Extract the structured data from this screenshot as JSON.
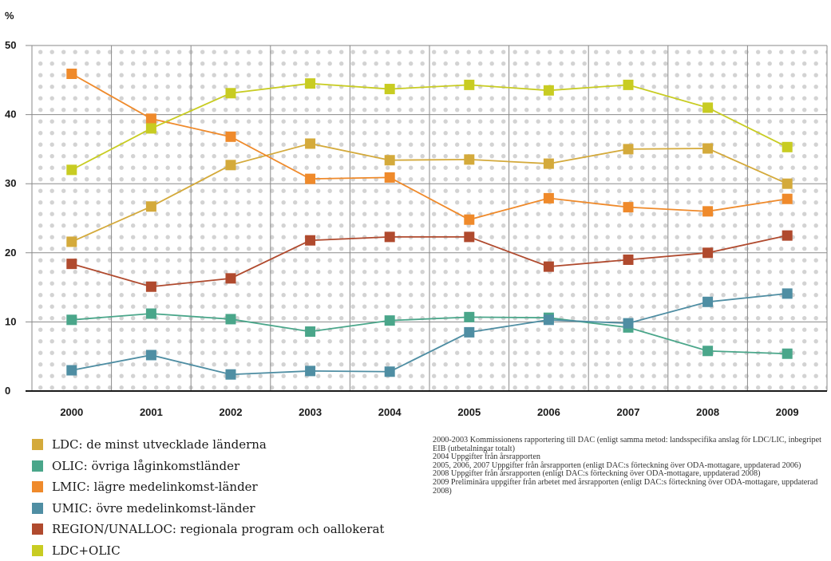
{
  "chart_data": {
    "type": "line",
    "ylabel": "%",
    "ylim": [
      0,
      50
    ],
    "yticks": [
      0,
      10,
      20,
      30,
      40,
      50
    ],
    "grid": true,
    "background_pattern": "dotted",
    "categories": [
      "2000",
      "2001",
      "2002",
      "2003",
      "2004",
      "2005",
      "2006",
      "2007",
      "2008",
      "2009"
    ],
    "series": [
      {
        "name": "LDC: de minst utvecklade länderna",
        "color": "#d4aa3b",
        "values": [
          21.6,
          26.7,
          32.7,
          35.8,
          33.4,
          33.5,
          32.9,
          35.0,
          35.1,
          30.0
        ]
      },
      {
        "name": "OLIC: övriga låginkomstländer",
        "color": "#4aa68a",
        "values": [
          10.3,
          11.2,
          10.4,
          8.6,
          10.2,
          10.7,
          10.6,
          9.2,
          5.8,
          5.4
        ]
      },
      {
        "name": "LMIC: lägre medelinkomst-länder",
        "color": "#ef8a2b",
        "values": [
          45.9,
          39.4,
          36.8,
          30.7,
          30.9,
          24.8,
          27.9,
          26.6,
          26.0,
          27.8
        ]
      },
      {
        "name": "UMIC: övre medelinkomst-länder",
        "color": "#4f8ea3",
        "values": [
          3.0,
          5.2,
          2.4,
          2.9,
          2.8,
          8.5,
          10.3,
          9.8,
          12.9,
          14.1
        ]
      },
      {
        "name": "REGION/UNALLOC: regionala program och oallokerat",
        "color": "#b04a2e",
        "values": [
          18.4,
          15.1,
          16.3,
          21.8,
          22.3,
          22.3,
          18.0,
          19.0,
          20.0,
          22.5
        ]
      },
      {
        "name": "LDC+OLIC",
        "color": "#c8cc22",
        "values": [
          32.0,
          38.0,
          43.1,
          44.5,
          43.7,
          44.3,
          43.5,
          44.3,
          41.0,
          35.3
        ]
      }
    ]
  },
  "notes": [
    "2000-2003 Kommissionens rapportering till DAC (enligt samma metod: landsspecifika anslag för LDC/LIC, inbegripet EIB (utbetalningar totalt)",
    "2004 Uppgifter från årsrapporten",
    "2005, 2006, 2007 Uppgifter från årsrapporten (enligt DAC:s förteckning över ODA-mottagare, uppdaterad 2006)",
    "2008 Uppgifter från årsrapporten (enligt DAC:s förteckning över ODA-mottagare, uppdaterad 2008)",
    "2009 Preliminära uppgifter från arbetet med årsrapporten (enligt DAC:s förteckning över ODA-mottagare, uppdaterad 2008)"
  ]
}
